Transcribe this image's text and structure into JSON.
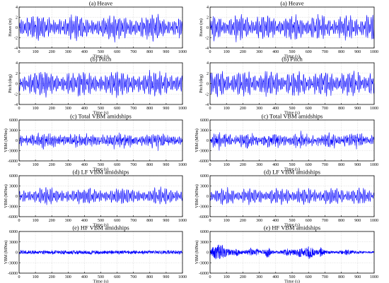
{
  "colors": {
    "signal": "#0000ff",
    "axes": "#000000",
    "grid": "#c8c8c8"
  },
  "chart_data": [
    {
      "id": "L-heave",
      "type": "line",
      "column": "left",
      "row": 0,
      "title": "(a) Heave",
      "xlabel": "Time (s)",
      "ylabel": "Heave (m)",
      "xlim": [
        0,
        1000
      ],
      "ylim": [
        -4,
        4
      ],
      "xticks": [
        0,
        100,
        200,
        300,
        400,
        500,
        600,
        700,
        800,
        900,
        1000
      ],
      "yticks": [
        -4,
        -2,
        0,
        2,
        4
      ],
      "grid": true,
      "signal": {
        "amplitude": 2.0,
        "period_s": 9,
        "modulation": "steady",
        "hf_share": 0
      },
      "series": [
        {
          "values": []
        }
      ]
    },
    {
      "id": "R-heave",
      "type": "line",
      "column": "right",
      "row": 0,
      "title": "(a) Heave",
      "xlabel": "Time (s)",
      "ylabel": "Heave (m)",
      "xlim": [
        0,
        1000
      ],
      "ylim": [
        -4,
        4
      ],
      "xticks": [
        0,
        100,
        200,
        300,
        400,
        500,
        600,
        700,
        800,
        900,
        1000
      ],
      "yticks": [
        -4,
        -2,
        0,
        2,
        4
      ],
      "grid": true,
      "signal": {
        "amplitude": 2.0,
        "period_s": 9,
        "modulation": "grouped",
        "hf_share": 0
      },
      "series": [
        {
          "values": []
        }
      ]
    },
    {
      "id": "L-pitch",
      "type": "line",
      "column": "left",
      "row": 1,
      "title": "(b) Pitch",
      "xlabel": "Time (s)",
      "ylabel": "Pitch (deg)",
      "xlim": [
        0,
        1000
      ],
      "ylim": [
        -4,
        4
      ],
      "xticks": [
        0,
        100,
        200,
        300,
        400,
        500,
        600,
        700,
        800,
        900,
        1000
      ],
      "yticks": [
        -4,
        -2,
        0,
        2,
        4
      ],
      "grid": true,
      "signal": {
        "amplitude": 2.0,
        "period_s": 9,
        "modulation": "steady",
        "hf_share": 0
      },
      "series": [
        {
          "values": []
        }
      ]
    },
    {
      "id": "R-pitch",
      "type": "line",
      "column": "right",
      "row": 1,
      "title": "(b) Pitch",
      "xlabel": "Time (s)",
      "ylabel": "Pitch (deg)",
      "xlim": [
        0,
        1000
      ],
      "ylim": [
        -4,
        4
      ],
      "xticks": [
        0,
        100,
        200,
        300,
        400,
        500,
        600,
        700,
        800,
        900,
        1000
      ],
      "yticks": [
        -4,
        -2,
        0,
        2,
        4
      ],
      "grid": true,
      "signal": {
        "amplitude": 2.0,
        "period_s": 9,
        "modulation": "grouped",
        "hf_share": 0
      },
      "series": [
        {
          "values": []
        }
      ]
    },
    {
      "id": "L-total",
      "type": "line",
      "column": "left",
      "row": 2,
      "title": "(c) Total VBM amidships",
      "xlabel": "Time (s)",
      "ylabel": "VBM (MNm)",
      "xlim": [
        0,
        1000
      ],
      "ylim": [
        -6000,
        6000
      ],
      "xticks": [
        0,
        100,
        200,
        300,
        400,
        500,
        600,
        700,
        800,
        900,
        1000
      ],
      "yticks": [
        -6000,
        -3000,
        0,
        3000,
        6000
      ],
      "grid": true,
      "signal": {
        "amplitude": 2200,
        "period_s": 9,
        "modulation": "steady",
        "hf_share": 0.35
      },
      "series": [
        {
          "values": []
        }
      ]
    },
    {
      "id": "R-total",
      "type": "line",
      "column": "right",
      "row": 2,
      "title": "(c) Total VBM amidships",
      "xlabel": "Time (s)",
      "ylabel": "VBM (MNm)",
      "xlim": [
        0,
        1000
      ],
      "ylim": [
        -6000,
        6000
      ],
      "xticks": [
        0,
        100,
        200,
        300,
        400,
        500,
        600,
        700,
        800,
        900,
        1000
      ],
      "yticks": [
        -6000,
        -3000,
        0,
        3000,
        6000
      ],
      "grid": true,
      "signal": {
        "amplitude": 2200,
        "period_s": 9,
        "modulation": "grouped",
        "hf_share": 0.35
      },
      "series": [
        {
          "values": []
        }
      ]
    },
    {
      "id": "L-lf",
      "type": "line",
      "column": "left",
      "row": 3,
      "title": "(d) LF VBM amidships",
      "xlabel": "Time (s)",
      "ylabel": "VBM (MNm)",
      "xlim": [
        0,
        1000
      ],
      "ylim": [
        -6000,
        6000
      ],
      "xticks": [
        0,
        100,
        200,
        300,
        400,
        500,
        600,
        700,
        800,
        900,
        1000
      ],
      "yticks": [
        -6000,
        -3000,
        0,
        3000,
        6000
      ],
      "grid": true,
      "signal": {
        "amplitude": 2000,
        "period_s": 9,
        "modulation": "steady",
        "hf_share": 0
      },
      "series": [
        {
          "values": []
        }
      ]
    },
    {
      "id": "R-lf",
      "type": "line",
      "column": "right",
      "row": 3,
      "title": "(d) LF VBM amidships",
      "xlabel": "Time (s)",
      "ylabel": "VBM (MNm)",
      "xlim": [
        0,
        1000
      ],
      "ylim": [
        -6000,
        6000
      ],
      "xticks": [
        0,
        100,
        200,
        300,
        400,
        500,
        600,
        700,
        800,
        900,
        1000
      ],
      "yticks": [
        -6000,
        -3000,
        0,
        3000,
        6000
      ],
      "grid": true,
      "signal": {
        "amplitude": 2000,
        "period_s": 9,
        "modulation": "grouped",
        "hf_share": 0
      },
      "series": [
        {
          "values": []
        }
      ]
    },
    {
      "id": "L-hf",
      "type": "line",
      "column": "left",
      "row": 4,
      "title": "(e) HF VBM amidships",
      "xlabel": "Time (s)",
      "ylabel": "VBM (MNm)",
      "xlim": [
        0,
        1000
      ],
      "ylim": [
        -6000,
        6000
      ],
      "xticks": [
        0,
        100,
        200,
        300,
        400,
        500,
        600,
        700,
        800,
        900,
        1000
      ],
      "yticks": [
        -6000,
        -3000,
        0,
        3000,
        6000
      ],
      "grid": true,
      "signal": {
        "amplitude": 650,
        "period_s": 1.6,
        "modulation": "bursty",
        "hf_share": 1
      },
      "series": [
        {
          "values": []
        }
      ]
    },
    {
      "id": "R-hf",
      "type": "line",
      "column": "right",
      "row": 4,
      "title": "(e) HF VBM amidships",
      "xlabel": "Time (s)",
      "ylabel": "VBM (MNm)",
      "xlim": [
        0,
        1000
      ],
      "ylim": [
        -6000,
        6000
      ],
      "xticks": [
        0,
        100,
        200,
        300,
        400,
        500,
        600,
        700,
        800,
        900,
        1000
      ],
      "yticks": [
        -6000,
        -3000,
        0,
        3000,
        6000
      ],
      "grid": true,
      "signal": {
        "amplitude": 900,
        "period_s": 1.6,
        "modulation": "bursts",
        "hf_share": 1
      },
      "series": [
        {
          "values": []
        }
      ]
    }
  ]
}
